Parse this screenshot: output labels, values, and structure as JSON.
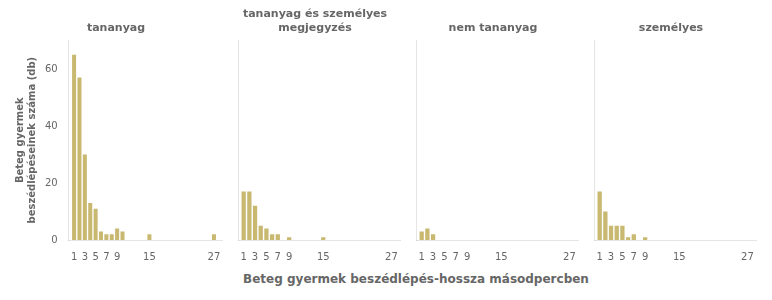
{
  "chart_data": [
    {
      "type": "bar",
      "title": "tananyag",
      "ylabel": "Beteg gyermek\nbeszédlépéseinek száma (db)",
      "xlabel": "Beteg gyermek beszédlépés-hossza másodpercben",
      "x": [
        1,
        2,
        3,
        4,
        5,
        6,
        7,
        8,
        9,
        10,
        15,
        27
      ],
      "values": [
        65,
        57,
        30,
        13,
        11,
        3,
        2,
        2,
        4,
        3,
        2,
        2
      ],
      "color": "#c8b870",
      "xlim": [
        0,
        28.5
      ],
      "xticks": [
        1,
        3,
        5,
        7,
        9,
        15,
        27
      ],
      "ylim": [
        0,
        70
      ],
      "yticks": [
        0,
        20,
        40,
        60
      ],
      "grid": false
    },
    {
      "type": "bar",
      "title": "tananyag és személyes\nmegjegyzés",
      "x": [
        1,
        2,
        3,
        4,
        5,
        6,
        7,
        9,
        15
      ],
      "values": [
        17,
        17,
        12,
        5,
        4,
        2,
        2,
        1,
        1
      ],
      "color": "#c8b870",
      "xlim": [
        0,
        28.5
      ],
      "xticks": [
        1,
        3,
        5,
        7,
        9,
        15,
        27
      ],
      "ylim": [
        0,
        70
      ],
      "yticks": [
        0,
        20,
        40,
        60
      ],
      "grid": false,
      "tick_labels": "x"
    },
    {
      "type": "bar",
      "title": "nem tananyag",
      "x": [
        1,
        2,
        3
      ],
      "values": [
        3,
        4,
        2
      ],
      "color": "#c8b870",
      "xlim": [
        0,
        28.5
      ],
      "xticks": [
        1,
        3,
        5,
        7,
        9,
        15,
        27
      ],
      "ylim": [
        0,
        70
      ],
      "yticks": [
        0,
        20,
        40,
        60
      ],
      "grid": false,
      "tick_labels": "x"
    },
    {
      "type": "bar",
      "title": "személyes",
      "x": [
        1,
        2,
        3,
        4,
        5,
        6,
        7,
        9
      ],
      "values": [
        17,
        10,
        5,
        5,
        5,
        1,
        2,
        1
      ],
      "color": "#c8b870",
      "xlim": [
        0,
        28.5
      ],
      "xticks": [
        1,
        3,
        5,
        7,
        9,
        15,
        27
      ],
      "ylim": [
        0,
        70
      ],
      "yticks": [
        0,
        20,
        40,
        60
      ],
      "grid": false,
      "tick_labels": "x"
    }
  ]
}
